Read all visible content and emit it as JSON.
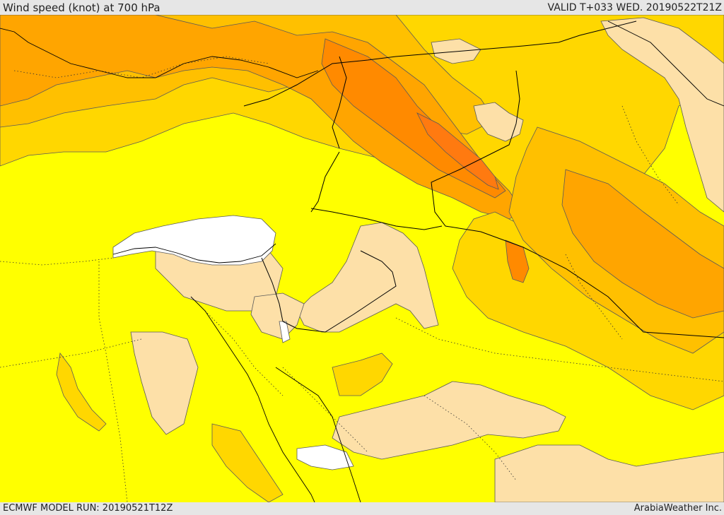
{
  "header": {
    "title": "Wind speed (knot) at 700 hPa",
    "valid": "VALID T+033 WED. 20190522T21Z"
  },
  "footer": {
    "model_run": "ECMWF MODEL RUN: 20190521T12Z",
    "credit": "ArabiaWeather Inc."
  },
  "colors": {
    "no_data_white": "#ffffff",
    "band_1_light_tan": "#fde0a8",
    "band_2_yellow": "#ffff00",
    "band_3_gold": "#ffd700",
    "band_4_amber": "#ffc000",
    "band_5_orange": "#ffa500",
    "band_6_dark_orange": "#ff8a00",
    "band_7_deep_orange": "#ff7a10",
    "contour_line": "#5a5a5a",
    "border_line": "#000000"
  }
}
